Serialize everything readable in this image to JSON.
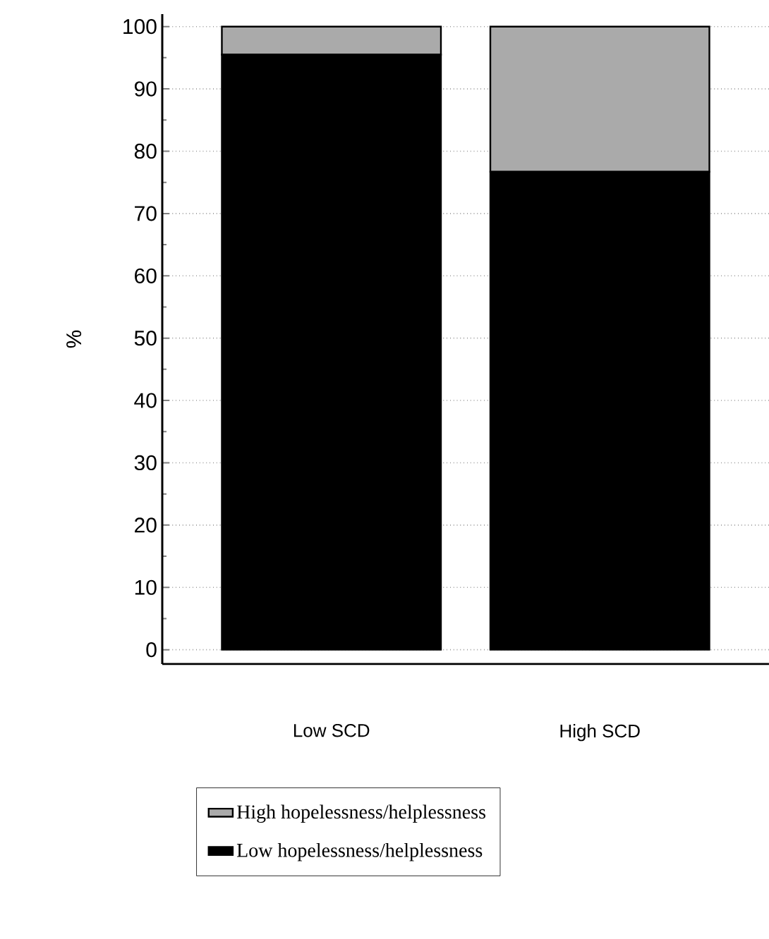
{
  "chart_data": {
    "type": "bar",
    "stacked": true,
    "ylabel": "%",
    "categories": [
      "Low SCD",
      "High SCD"
    ],
    "series": [
      {
        "name": "Low hopelessness/helplessness",
        "color": "#000000",
        "values": [
          95.5,
          76.7
        ]
      },
      {
        "name": "High hopelessness/helplessness",
        "color": "#aaaaaa",
        "values": [
          4.5,
          23.3
        ]
      }
    ],
    "ylim": [
      -2.3,
      102
    ],
    "yticks": [
      0,
      10,
      20,
      30,
      40,
      50,
      60,
      70,
      80,
      90,
      100
    ],
    "grid": "y",
    "legend": "bottom"
  }
}
